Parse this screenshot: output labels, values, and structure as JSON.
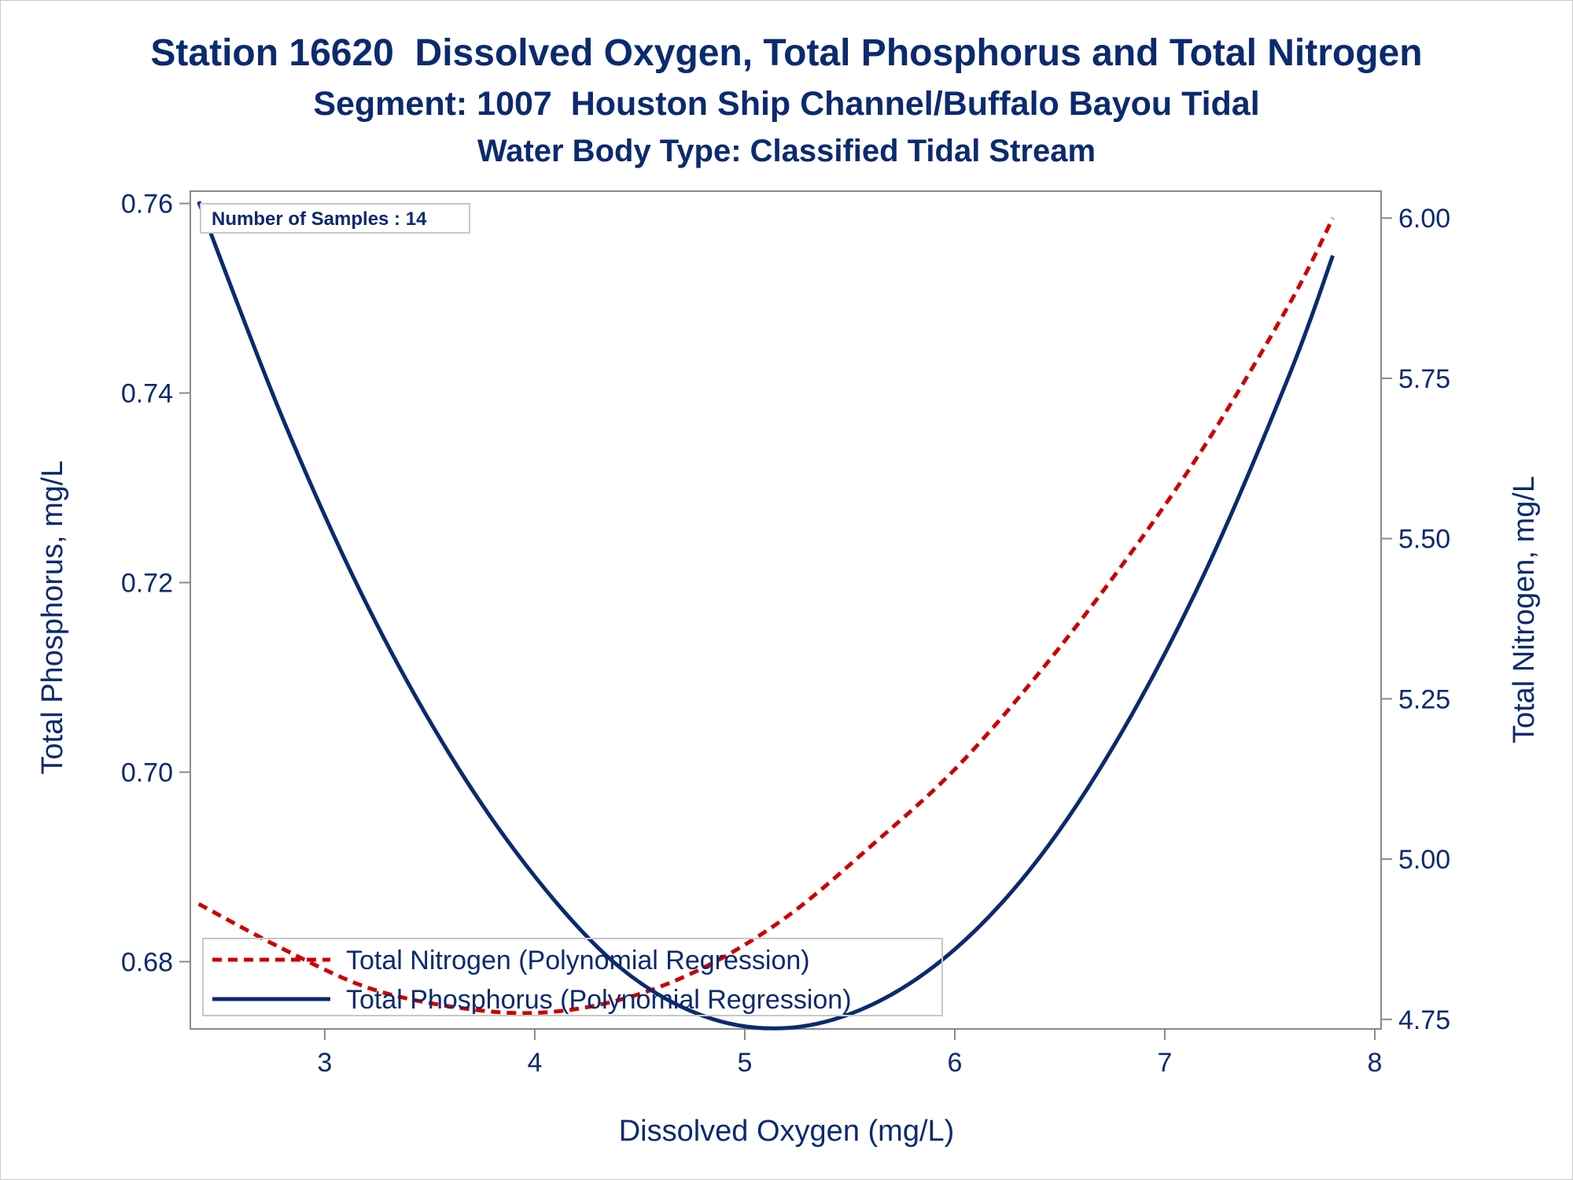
{
  "titles": {
    "line1": "Station 16620  Dissolved Oxygen, Total Phosphorus and Total Nitrogen",
    "line2": "Segment: 1007  Houston Ship Channel/Buffalo Bayou Tidal",
    "line3": "Water Body Type: Classified Tidal Stream"
  },
  "inset_label": "Number of Samples : 14",
  "chart_data": {
    "type": "line",
    "xlabel": "Dissolved Oxygen (mg/L)",
    "ylabel_left": "Total Phosphorus, mg/L",
    "ylabel_right": "Total Nitrogen, mg/L",
    "xlim": [
      2.36,
      8.03
    ],
    "ylim_left": [
      0.6729,
      0.7613
    ],
    "ylim_right": [
      4.735,
      6.042
    ],
    "x_ticks": [
      3,
      4,
      5,
      6,
      7,
      8
    ],
    "x_tick_labels": [
      "3",
      "4",
      "5",
      "6",
      "7",
      "8"
    ],
    "y_left_ticks": [
      0.68,
      0.7,
      0.72,
      0.74,
      0.76
    ],
    "y_left_tick_labels": [
      "0.68",
      "0.70",
      "0.72",
      "0.74",
      "0.76"
    ],
    "y_right_ticks": [
      4.75,
      5.0,
      5.25,
      5.5,
      5.75,
      6.0
    ],
    "y_right_tick_labels": [
      "4.75",
      "5.00",
      "5.25",
      "5.50",
      "5.75",
      "6.00"
    ],
    "grid": false,
    "legend_position": "bottom-left",
    "series": [
      {
        "name": "Total Nitrogen (Polynomial Regression)",
        "axis": "right",
        "color": "#cc0000",
        "style": "dashed",
        "x": [
          2.4,
          2.8,
          3.2,
          3.6,
          4.0,
          4.4,
          4.8,
          5.2,
          5.6,
          6.0,
          6.4,
          6.8,
          7.2,
          7.6,
          7.8
        ],
        "y": [
          4.93,
          4.86,
          4.8,
          4.77,
          4.76,
          4.78,
          4.83,
          4.91,
          5.02,
          5.14,
          5.29,
          5.46,
          5.65,
          5.87,
          6.0
        ]
      },
      {
        "name": "Total Phosphorus (Polynomial Regression)",
        "axis": "left",
        "color": "#0b2a6f",
        "style": "solid",
        "x": [
          2.4,
          2.8,
          3.2,
          3.6,
          4.0,
          4.4,
          4.8,
          5.2,
          5.6,
          6.0,
          6.4,
          6.8,
          7.2,
          7.6,
          7.8
        ],
        "y": [
          0.7602,
          0.7373,
          0.7177,
          0.7017,
          0.689,
          0.6795,
          0.6743,
          0.673,
          0.6754,
          0.6813,
          0.6909,
          0.7044,
          0.7215,
          0.7423,
          0.7545
        ]
      }
    ]
  }
}
